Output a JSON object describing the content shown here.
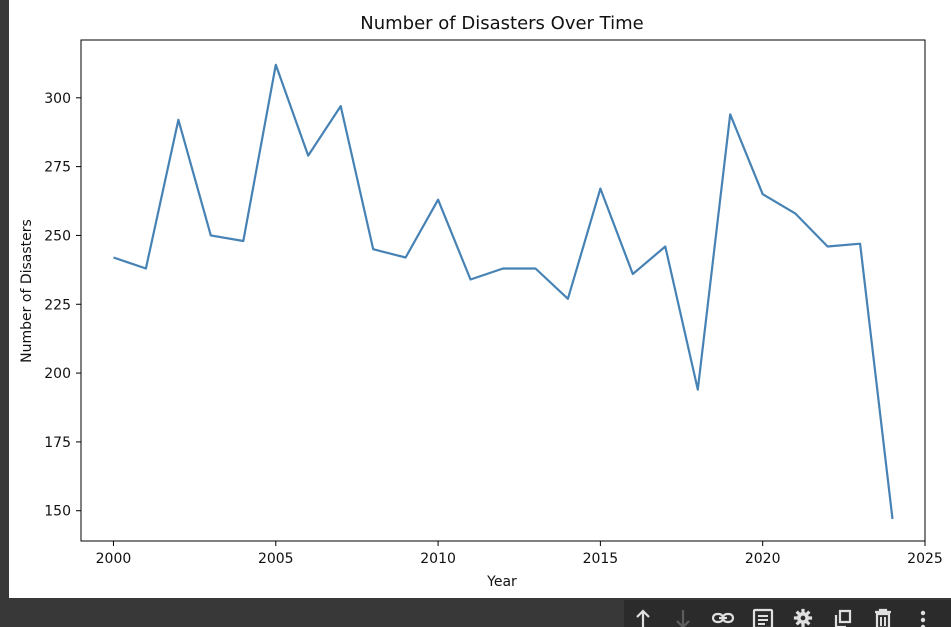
{
  "chart_data": {
    "type": "line",
    "title": "Number of Disasters Over Time",
    "xlabel": "Year",
    "ylabel": "Number of Disasters",
    "xlim": [
      1999,
      2025
    ],
    "ylim": [
      139,
      321
    ],
    "xticks": [
      2000,
      2005,
      2010,
      2015,
      2020,
      2025
    ],
    "yticks": [
      150,
      175,
      200,
      225,
      250,
      275,
      300
    ],
    "grid": false,
    "series": [
      {
        "color": "#4682b4",
        "x": [
          2000,
          2001,
          2002,
          2003,
          2004,
          2005,
          2006,
          2007,
          2008,
          2009,
          2010,
          2011,
          2012,
          2013,
          2014,
          2015,
          2016,
          2017,
          2018,
          2019,
          2020,
          2021,
          2022,
          2023,
          2024
        ],
        "y": [
          242,
          238,
          292,
          250,
          248,
          312,
          279,
          297,
          245,
          242,
          263,
          234,
          238,
          238,
          227,
          267,
          236,
          246,
          194,
          294,
          265,
          258,
          246,
          247,
          147
        ]
      }
    ]
  },
  "toolbar": {
    "buttons": [
      {
        "icon": "arrow-up-icon",
        "label": "Move cell up"
      },
      {
        "icon": "arrow-down-icon",
        "label": "Move cell down"
      },
      {
        "icon": "link-icon",
        "label": "Copy link to cell"
      },
      {
        "icon": "comment-icon",
        "label": "Add comment"
      },
      {
        "icon": "gear-icon",
        "label": "Open settings"
      },
      {
        "icon": "mirror-cell-icon",
        "label": "Mirror cell in tab"
      },
      {
        "icon": "trash-icon",
        "label": "Delete cell"
      },
      {
        "icon": "more-vert-icon",
        "label": "More actions"
      }
    ]
  }
}
